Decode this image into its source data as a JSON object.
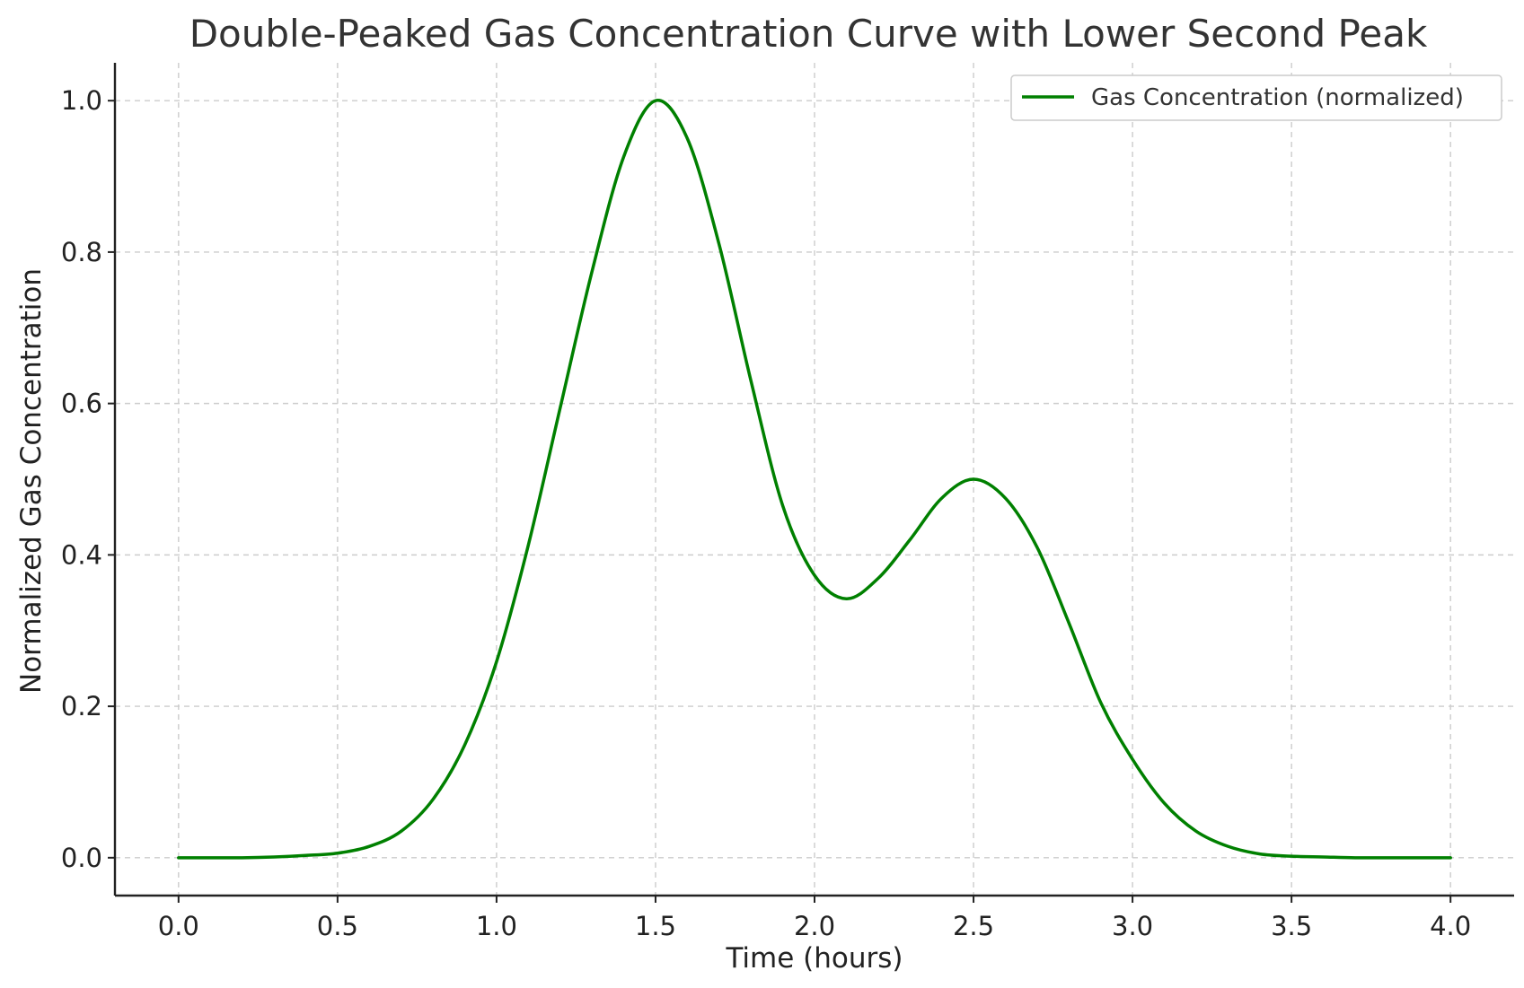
{
  "chart_data": {
    "type": "line",
    "title": "Double-Peaked Gas Concentration Curve with Lower Second Peak",
    "xlabel": "Time (hours)",
    "ylabel": "Normalized Gas Concentration",
    "xlim": [
      -0.2,
      4.2
    ],
    "ylim": [
      -0.05,
      1.05
    ],
    "xticks": [
      "0.0",
      "0.5",
      "1.0",
      "1.5",
      "2.0",
      "2.5",
      "3.0",
      "3.5",
      "4.0"
    ],
    "yticks": [
      "0.0",
      "0.2",
      "0.4",
      "0.6",
      "0.8",
      "1.0"
    ],
    "grid": true,
    "legend_position": "upper right",
    "series": [
      {
        "name": "Gas Concentration (normalized)",
        "color": "#008000",
        "x": [
          0.0,
          0.1,
          0.2,
          0.3,
          0.4,
          0.5,
          0.6,
          0.7,
          0.8,
          0.9,
          1.0,
          1.1,
          1.2,
          1.3,
          1.4,
          1.5,
          1.6,
          1.7,
          1.8,
          1.9,
          2.0,
          2.1,
          2.2,
          2.3,
          2.4,
          2.5,
          2.6,
          2.7,
          2.8,
          2.9,
          3.0,
          3.1,
          3.2,
          3.3,
          3.4,
          3.5,
          3.6,
          3.7,
          3.8,
          3.9,
          4.0
        ],
        "y": [
          0.0,
          0.0,
          0.0,
          0.001,
          0.003,
          0.006,
          0.015,
          0.035,
          0.077,
          0.149,
          0.259,
          0.413,
          0.594,
          0.774,
          0.926,
          1.0,
          0.95,
          0.81,
          0.63,
          0.465,
          0.373,
          0.342,
          0.369,
          0.42,
          0.475,
          0.5,
          0.475,
          0.41,
          0.31,
          0.205,
          0.13,
          0.072,
          0.035,
          0.015,
          0.005,
          0.002,
          0.001,
          0.0,
          0.0,
          0.0,
          0.0
        ]
      }
    ]
  }
}
